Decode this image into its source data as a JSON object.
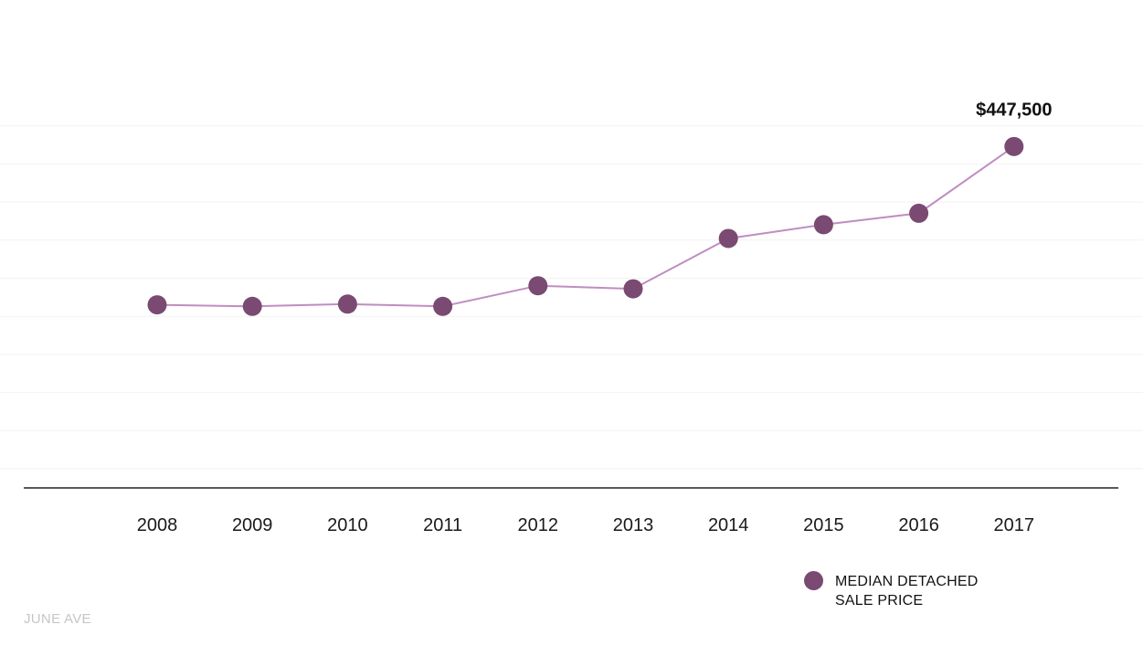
{
  "chart_data": {
    "type": "line",
    "title": "",
    "xlabel": "",
    "ylabel": "",
    "x": [
      "2008",
      "2009",
      "2010",
      "2011",
      "2012",
      "2013",
      "2014",
      "2015",
      "2016",
      "2017"
    ],
    "series": [
      {
        "name": "MEDIAN DETACHED SALE PRICE",
        "values": [
          240000,
          238000,
          241000,
          238000,
          265000,
          261000,
          327000,
          345000,
          360000,
          447500
        ]
      }
    ],
    "annotation": {
      "x": "2017",
      "text": "$447,500"
    },
    "ylim": [
      0,
      1000000
    ],
    "grid": true,
    "legend": "bottom-right",
    "colors": {
      "marker": "#7a4a72",
      "line": "#c08dc0",
      "axis": "#222222",
      "grid": "#f2f2f2"
    }
  },
  "legend": {
    "line1": "MEDIAN DETACHED",
    "line2": "SALE PRICE"
  },
  "watermark": "JUNE AVE"
}
